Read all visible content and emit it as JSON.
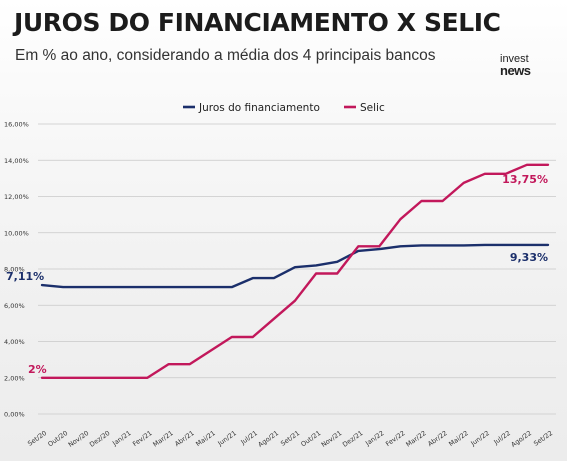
{
  "header": {
    "title": "JUROS DO FINANCIAMENTO X SELIC",
    "subtitle": "Em % ao ano, considerando a média dos 4 principais bancos",
    "logo_top": "invest",
    "logo_bottom": "news"
  },
  "colors": {
    "financiamento": "#1b2f6b",
    "selic": "#c2185b",
    "grid": "#c8c8c8"
  },
  "chart_data": {
    "type": "line",
    "title": "JUROS DO FINANCIAMENTO X SELIC",
    "subtitle": "Em % ao ano, considerando a média dos 4 principais bancos",
    "xlabel": "",
    "ylabel": "",
    "ylim": [
      0,
      16
    ],
    "yticks": [
      "0,00%",
      "2,00%",
      "4,00%",
      "6,00%",
      "8,00%",
      "10,00%",
      "12,00%",
      "14,00%",
      "16,00%"
    ],
    "grid": true,
    "legend_position": "top-center",
    "categories": [
      "Set/20",
      "Out/20",
      "Nov/20",
      "Dez/20",
      "Jan/21",
      "Fev/21",
      "Mar/21",
      "Abr/21",
      "Mai/21",
      "Jun/21",
      "Jul/21",
      "Ago/21",
      "Set/21",
      "Out/21",
      "Nov/21",
      "Dez/21",
      "Jan/22",
      "Fev/22",
      "Mar/22",
      "Abr/22",
      "Mai/22",
      "Jun/22",
      "Jul/22",
      "Ago/22",
      "Set/22"
    ],
    "series": [
      {
        "name": "Juros do financiamento",
        "color": "#1b2f6b",
        "values": [
          7.11,
          7.0,
          7.0,
          7.0,
          7.0,
          7.0,
          7.0,
          7.0,
          7.0,
          7.0,
          7.5,
          7.5,
          8.1,
          8.2,
          8.4,
          9.0,
          9.1,
          9.25,
          9.3,
          9.3,
          9.3,
          9.33,
          9.33,
          9.33,
          9.33
        ],
        "labels": [
          {
            "index": 0,
            "text": "7,11%"
          },
          {
            "index": 24,
            "text": "9,33%"
          }
        ]
      },
      {
        "name": "Selic",
        "color": "#c2185b",
        "values": [
          2.0,
          2.0,
          2.0,
          2.0,
          2.0,
          2.0,
          2.75,
          2.75,
          3.5,
          4.25,
          4.25,
          5.25,
          6.25,
          7.75,
          7.75,
          9.25,
          9.25,
          10.75,
          11.75,
          11.75,
          12.75,
          13.25,
          13.25,
          13.75,
          13.75
        ],
        "labels": [
          {
            "index": 0,
            "text": "2%"
          },
          {
            "index": 24,
            "text": "13,75%"
          }
        ]
      }
    ]
  }
}
